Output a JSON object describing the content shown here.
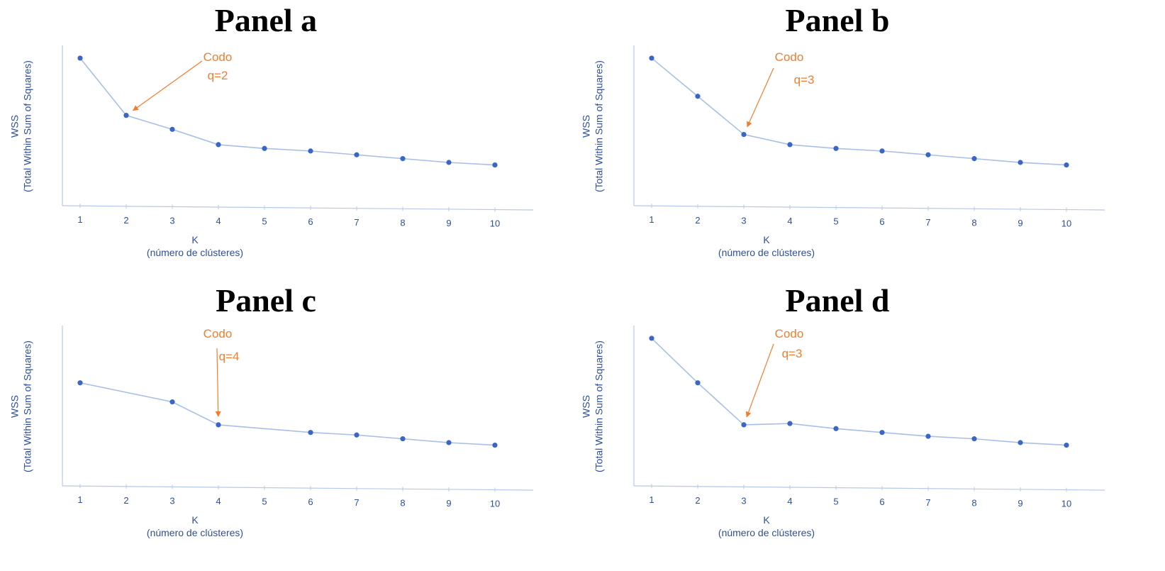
{
  "colors": {
    "line": "#a9bfe6",
    "point": "#3a66c4",
    "axis": "#b8c8e8",
    "axis_text": "#2f4f99",
    "annotation": "#f27d2e",
    "title": "#000000"
  },
  "chart_data": [
    {
      "type": "line",
      "title": "Panel a",
      "xlabel": "K",
      "xlabel_sub": "(número de clústeres)",
      "ylabel": "WSS",
      "ylabel_sub": "(Total Within Sum of Squares)",
      "x": [
        1,
        2,
        3,
        4,
        5,
        6,
        7,
        8,
        9,
        10
      ],
      "y": [
        100,
        55,
        44,
        32,
        29,
        27,
        24,
        21,
        18,
        16
      ],
      "ylim": [
        -16,
        110
      ],
      "grid": false,
      "annotation": {
        "lines": [
          "Codo",
          "q=2"
        ],
        "target_k": 2
      }
    },
    {
      "type": "line",
      "title": "Panel b",
      "xlabel": "K",
      "xlabel_sub": "(número de clústeres)",
      "ylabel": "WSS",
      "ylabel_sub": "(Total Within Sum of Squares)",
      "x": [
        1,
        2,
        3,
        4,
        5,
        6,
        7,
        8,
        9,
        10
      ],
      "y": [
        100,
        70,
        40,
        32,
        29,
        27,
        24,
        21,
        18,
        16
      ],
      "ylim": [
        -16,
        110
      ],
      "grid": false,
      "annotation": {
        "lines": [
          "Codo",
          "q=3"
        ],
        "target_k": 3
      }
    },
    {
      "type": "line",
      "title": "Panel c",
      "xlabel": "K",
      "xlabel_sub": "(número de clústeres)",
      "ylabel": "WSS",
      "ylabel_sub": "(Total Within Sum of Squares)",
      "x": [
        1,
        3,
        4,
        6,
        7,
        8,
        9,
        10
      ],
      "y": [
        65,
        50,
        32,
        26,
        24,
        21,
        18,
        16
      ],
      "xticks": [
        1,
        2,
        3,
        4,
        5,
        6,
        7,
        8,
        9,
        10
      ],
      "ylim": [
        -16,
        110
      ],
      "grid": false,
      "annotation": {
        "lines": [
          "Codo",
          "q=4"
        ],
        "target_k": 4
      }
    },
    {
      "type": "line",
      "title": "Panel d",
      "xlabel": "K",
      "xlabel_sub": "(número de clústeres)",
      "ylabel": "WSS",
      "ylabel_sub": "(Total Within Sum of Squares)",
      "x": [
        1,
        2,
        3,
        4,
        5,
        6,
        7,
        8,
        9,
        10
      ],
      "y": [
        100,
        65,
        32,
        33,
        29,
        26,
        23,
        21,
        18,
        16
      ],
      "ylim": [
        -16,
        110
      ],
      "grid": false,
      "annotation": {
        "lines": [
          "Codo",
          "q=3"
        ],
        "target_k": 3
      }
    }
  ]
}
